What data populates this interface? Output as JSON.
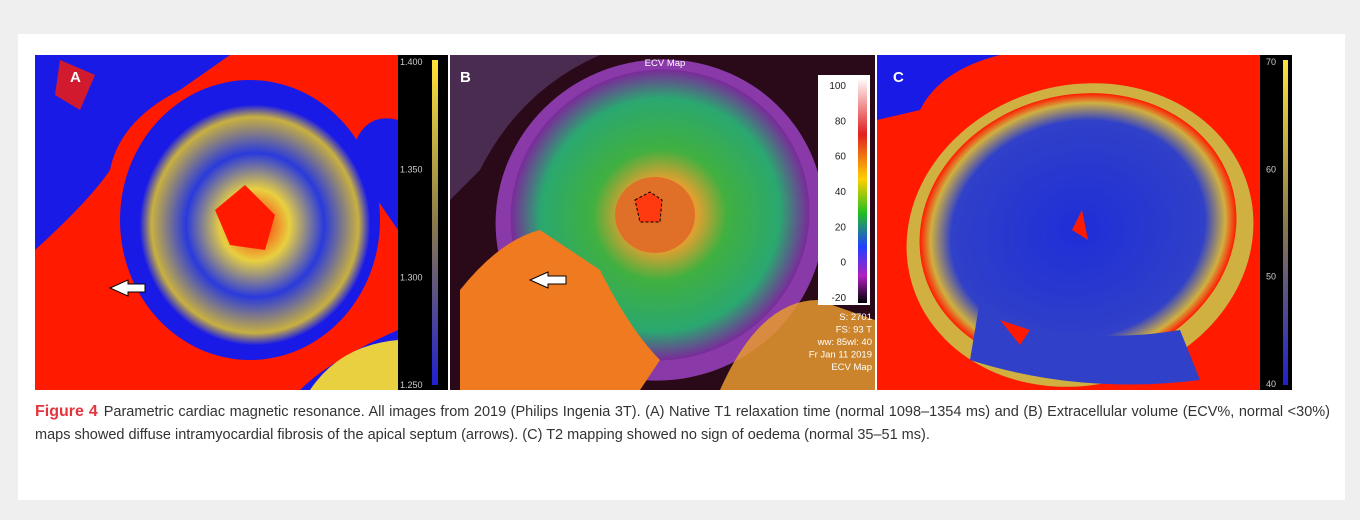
{
  "figure": {
    "panels": [
      {
        "label": "A",
        "colorbar_ticks": [
          "1.400",
          "1.350",
          "1.300",
          "1.250"
        ]
      },
      {
        "label": "B",
        "title": "ECV Map",
        "colorbar_ticks": [
          "100",
          "80",
          "60",
          "40",
          "20",
          "0",
          "-20"
        ],
        "overlay": [
          "S: 2701",
          "FS: 93 T",
          "ww: 85wl: 40",
          "Fr Jan 11 2019",
          "ECV Map"
        ]
      },
      {
        "label": "C",
        "colorbar_ticks": [
          "70",
          "60",
          "50",
          "40"
        ]
      }
    ],
    "caption": {
      "label": "Figure 4",
      "text": "Parametric cardiac magnetic resonance. All images from 2019 (Philips Ingenia 3T). (A) Native T1 relaxation time (normal 1098–1354 ms) and (B) Extracellular volume (ECV%, normal <30%) maps showed diffuse intramyocardial fibrosis of the apical septum (arrows). (C) T2 mapping showed no sign of oedema (normal 35–51 ms)."
    }
  }
}
